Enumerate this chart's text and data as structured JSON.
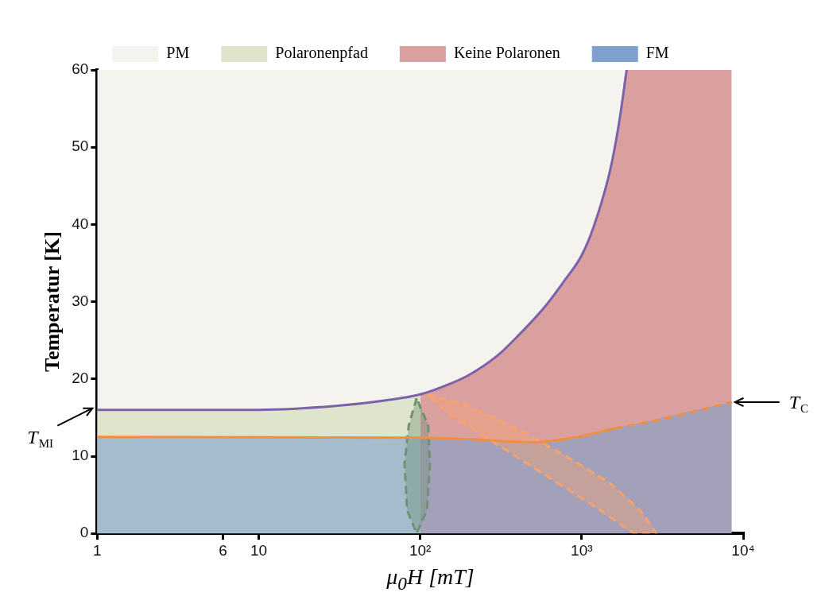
{
  "chart_data": {
    "type": "area",
    "xlabel": "μ$_{0}$H [mT]",
    "ylabel": "Temperatur [K]",
    "log": "x",
    "grid": false,
    "legend": "top",
    "marker": "none",
    "xlim": [
      1,
      10000
    ],
    "xticks": [
      1,
      6,
      10,
      {
        "value": 100,
        "label": "10²"
      },
      {
        "value": 1000,
        "label": "10³"
      },
      {
        "value": 10000,
        "label": "10⁴"
      }
    ],
    "ylim": [
      0,
      60
    ],
    "yticks": [
      0,
      10,
      20,
      30,
      40,
      50,
      60
    ],
    "series": [
      {
        "name": "PM",
        "color": "#f4f3ee",
        "x": [
          1,
          10,
          30,
          60,
          100,
          150,
          200,
          300,
          400,
          600,
          800,
          1000,
          1200,
          1500,
          1700,
          1900
        ],
        "values": [
          60,
          60,
          60,
          60,
          60,
          60,
          60,
          60,
          60,
          60,
          60,
          60,
          60,
          60,
          60,
          60
        ]
      },
      {
        "name": "Polaronenpfad",
        "color": "#dfe5cc",
        "x": [
          1,
          10,
          30,
          60,
          100
        ],
        "values": [
          16,
          16,
          16.5,
          17.2,
          18
        ]
      },
      {
        "name": "Keine Polaronen",
        "color": "#daa0a0",
        "x": [
          100,
          150,
          200,
          300,
          400,
          600,
          800,
          1000,
          1200,
          1500,
          1700,
          1900,
          8500
        ],
        "values": [
          18,
          19.3,
          20.5,
          23,
          25.5,
          29.5,
          33,
          36,
          40,
          47,
          53,
          60,
          60
        ]
      },
      {
        "name": "FM",
        "color": "#7fa0cc",
        "x": [
          1,
          100,
          200,
          500,
          1000,
          1600,
          2000,
          4000,
          8500
        ],
        "values": [
          12.5,
          12.4,
          12.2,
          11.8,
          12.6,
          13.6,
          14,
          15.5,
          17
        ]
      },
      {
        "color": "#f7a370",
        "line_style": "dashed",
        "x": [
          110,
          200,
          400,
          800,
          1500,
          2300,
          2800,
          2900,
          2100,
          1200,
          600,
          300,
          150,
          110
        ],
        "values": [
          18,
          16.5,
          13.5,
          10,
          6.5,
          3,
          0.5,
          0,
          0,
          3.5,
          7.5,
          11.5,
          15.5,
          18
        ]
      },
      {
        "color": "#6f9275",
        "line_style": "dashed",
        "x": [
          95,
          85,
          80,
          83,
          95,
          110,
          115,
          112,
          95
        ],
        "values": [
          17.5,
          14,
          9,
          3,
          0,
          3,
          9,
          14,
          17.5
        ]
      },
      {
        "type": "line",
        "color": "#7c62aa",
        "x": [
          1,
          10,
          30,
          60,
          100,
          150,
          200,
          300,
          400,
          600,
          800,
          1000,
          1200,
          1500,
          1700,
          1900
        ],
        "values": [
          16,
          16,
          16.5,
          17.2,
          18,
          19.3,
          20.5,
          23,
          25.5,
          29.5,
          33,
          36,
          40,
          47,
          53,
          60
        ]
      },
      {
        "type": "line",
        "color": "#f28e3f",
        "x": [
          1,
          100,
          200,
          500,
          1000,
          1600
        ],
        "values": [
          12.5,
          12.4,
          12.2,
          11.8,
          12.6,
          13.6
        ]
      },
      {
        "type": "line",
        "color": "#f28e3f",
        "line_style": "dashed",
        "x": [
          1600,
          3000,
          5000,
          8500
        ],
        "values": [
          13.6,
          14.7,
          15.8,
          17
        ]
      }
    ],
    "annotations": [
      {
        "text": "T$_{MI}$",
        "x": 1,
        "y": 16
      },
      {
        "text": "T$_{C}$",
        "x": 8500,
        "y": 17
      }
    ]
  }
}
